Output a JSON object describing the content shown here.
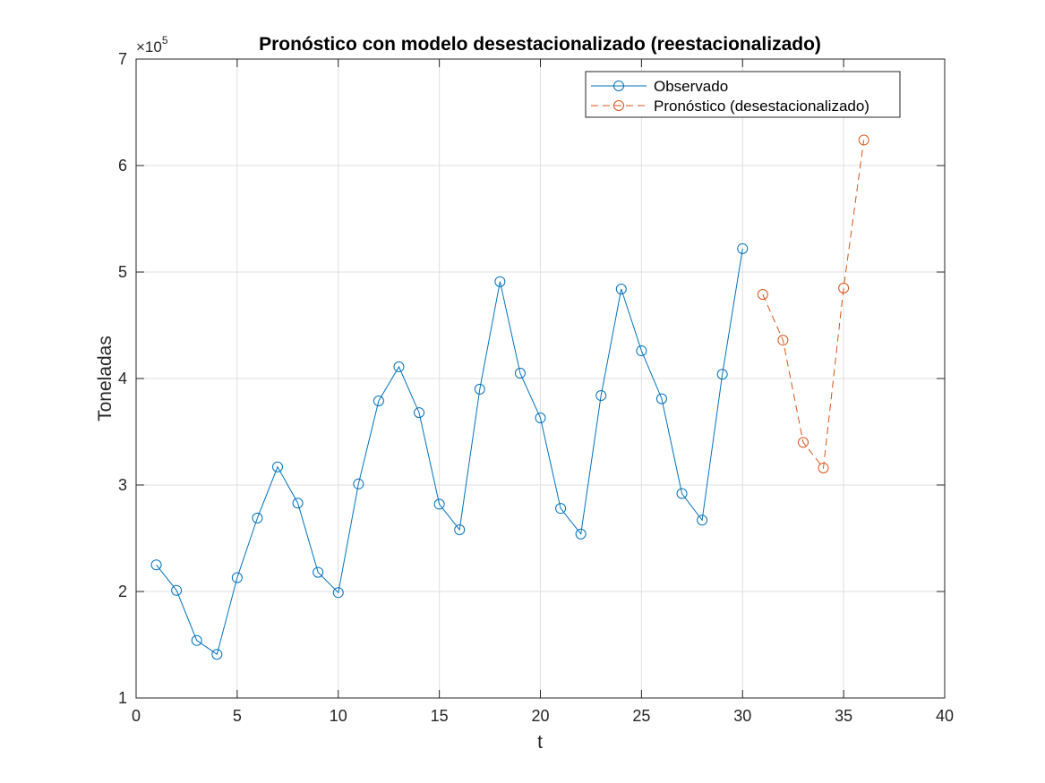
{
  "chart_data": {
    "type": "line",
    "title": "Pronóstico con modelo desestacionalizado (reestacionalizado)",
    "xlabel": "t",
    "ylabel": "Toneladas",
    "xlim": [
      0,
      40
    ],
    "ylim": [
      100000,
      700000
    ],
    "xticks": [
      0,
      5,
      10,
      15,
      20,
      25,
      30,
      35,
      40
    ],
    "yticks": [
      100000,
      200000,
      300000,
      400000,
      500000,
      600000,
      700000
    ],
    "ytick_labels": [
      "1",
      "2",
      "3",
      "4",
      "5",
      "6",
      "7"
    ],
    "y_exponent_base": "×10",
    "y_exponent_power": "5",
    "grid": true,
    "legend_position": "top-right",
    "series": [
      {
        "name": "Observado",
        "color": "#0072BD",
        "line_style": "solid",
        "marker": "circle",
        "x": [
          1,
          2,
          3,
          4,
          5,
          6,
          7,
          8,
          9,
          10,
          11,
          12,
          13,
          14,
          15,
          16,
          17,
          18,
          19,
          20,
          21,
          22,
          23,
          24,
          25,
          26,
          27,
          28,
          29,
          30
        ],
        "y": [
          225000,
          201000,
          154000,
          141000,
          213000,
          269000,
          317000,
          283000,
          218000,
          199000,
          301000,
          379000,
          411000,
          368000,
          282000,
          258000,
          390000,
          491000,
          405000,
          363000,
          278000,
          254000,
          384000,
          484000,
          426000,
          381000,
          292000,
          267000,
          404000,
          522000
        ]
      },
      {
        "name": "Pronóstico (desestacionalizado)",
        "color": "#D95319",
        "line_style": "dashed",
        "marker": "circle",
        "x": [
          31,
          32,
          33,
          34,
          35,
          36
        ],
        "y": [
          479000,
          436000,
          340000,
          316000,
          485000,
          624000
        ]
      }
    ]
  }
}
